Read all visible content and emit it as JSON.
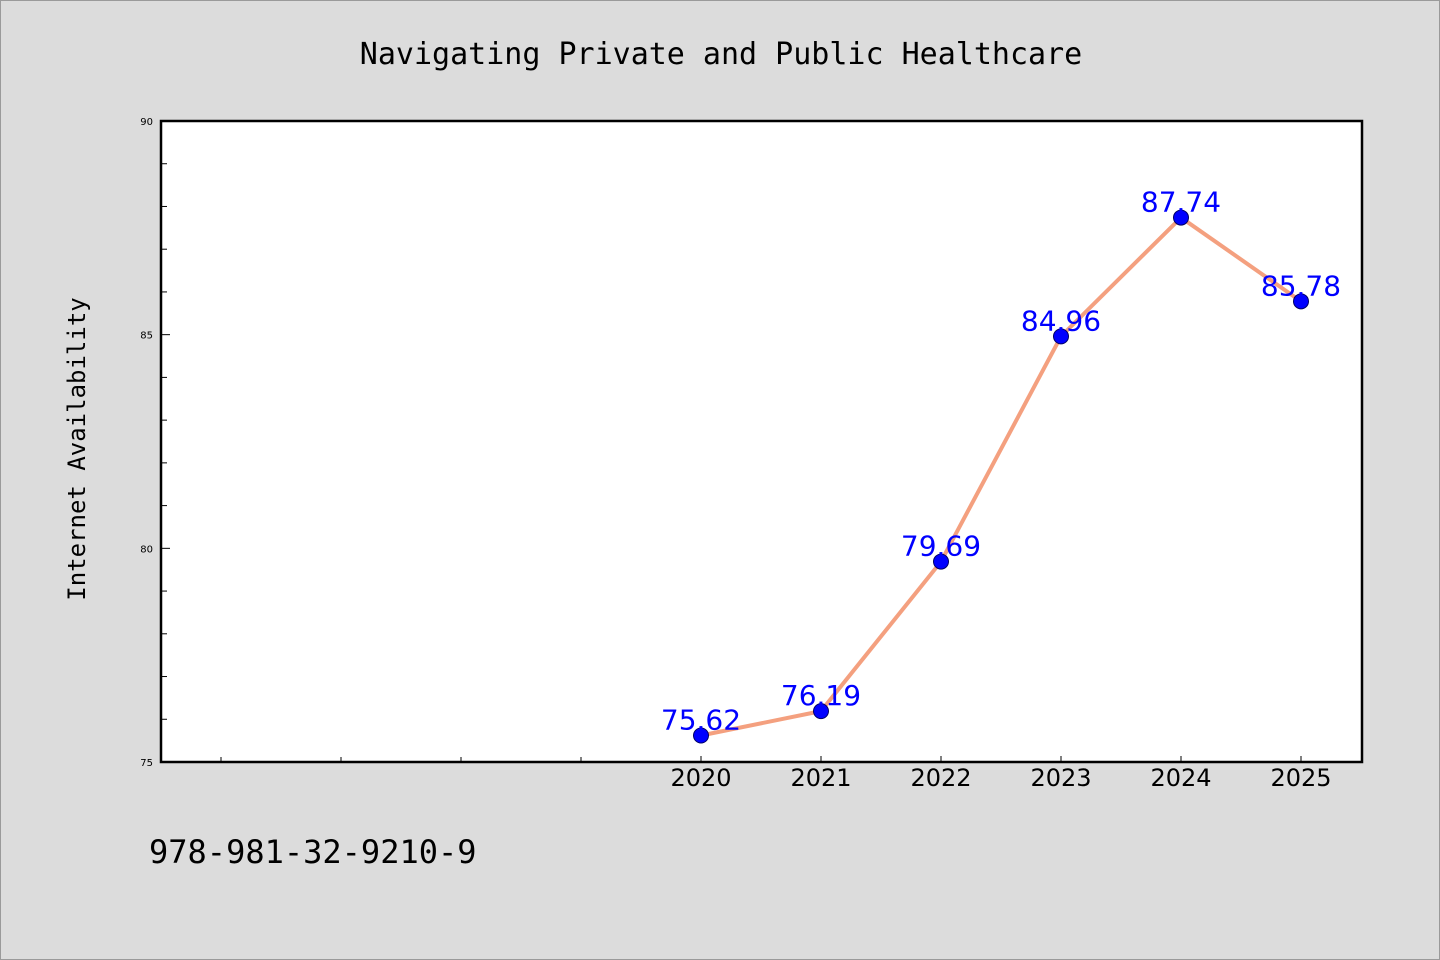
{
  "chart_data": {
    "type": "line",
    "title": "Navigating Private and Public Healthcare",
    "xlabel": "",
    "ylabel": "Internet Availability",
    "x": [
      "2020",
      "2021",
      "2022",
      "2023",
      "2024",
      "2025"
    ],
    "series": [
      {
        "values": [
          75.62,
          76.19,
          79.69,
          84.96,
          87.74,
          85.78
        ],
        "line_color": "#f4a07f",
        "marker_color": "#0000ff",
        "label_color": "#0000ff"
      }
    ],
    "data_labels": [
      "75.62",
      "76.19",
      "79.69",
      "84.96",
      "87.74",
      "85.78"
    ],
    "ylim": [
      75,
      90
    ],
    "y_major_ticks": [
      75,
      80,
      85,
      90
    ],
    "y_minor_step": 1,
    "x_extra_ticks": 5,
    "grid": false,
    "legend": "none"
  },
  "footer": {
    "isbn": "978-981-32-9210-9"
  },
  "colors": {
    "figure_background": "#dcdcdc",
    "plot_background": "#ffffff",
    "axes_frame": "#000000"
  }
}
